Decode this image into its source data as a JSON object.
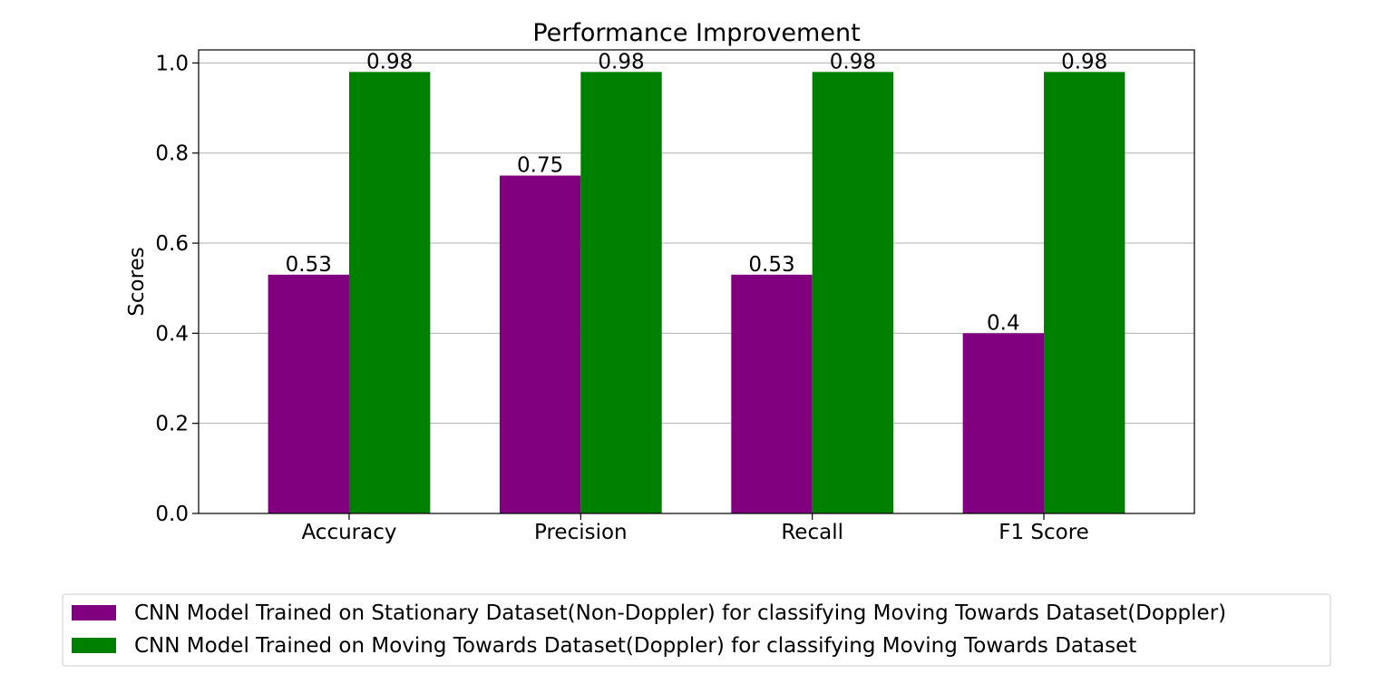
{
  "chart_data": {
    "type": "bar",
    "title": "Performance Improvement",
    "xlabel": "",
    "ylabel": "Scores",
    "categories": [
      "Accuracy",
      "Precision",
      "Recall",
      "F1 Score"
    ],
    "series": [
      {
        "name": "CNN Model Trained on Stationary Dataset(Non-Doppler) for classifying Moving Towards Dataset(Doppler)",
        "color": "#800080",
        "values": [
          0.53,
          0.75,
          0.53,
          0.4
        ],
        "labels": [
          "0.53",
          "0.75",
          "0.53",
          "0.4"
        ]
      },
      {
        "name": "CNN Model Trained on Moving Towards Dataset(Doppler) for classifying Moving Towards Dataset",
        "color": "#008000",
        "values": [
          0.98,
          0.98,
          0.98,
          0.98
        ],
        "labels": [
          "0.98",
          "0.98",
          "0.98",
          "0.98"
        ]
      }
    ],
    "yticks": [
      0.0,
      0.2,
      0.4,
      0.6,
      0.8,
      1.0
    ],
    "ytick_labels": [
      "0.0",
      "0.2",
      "0.4",
      "0.6",
      "0.8",
      "1.0"
    ],
    "ylim": [
      0,
      1.029
    ],
    "grid": "horizontal",
    "legend_position": "bottom-center"
  }
}
